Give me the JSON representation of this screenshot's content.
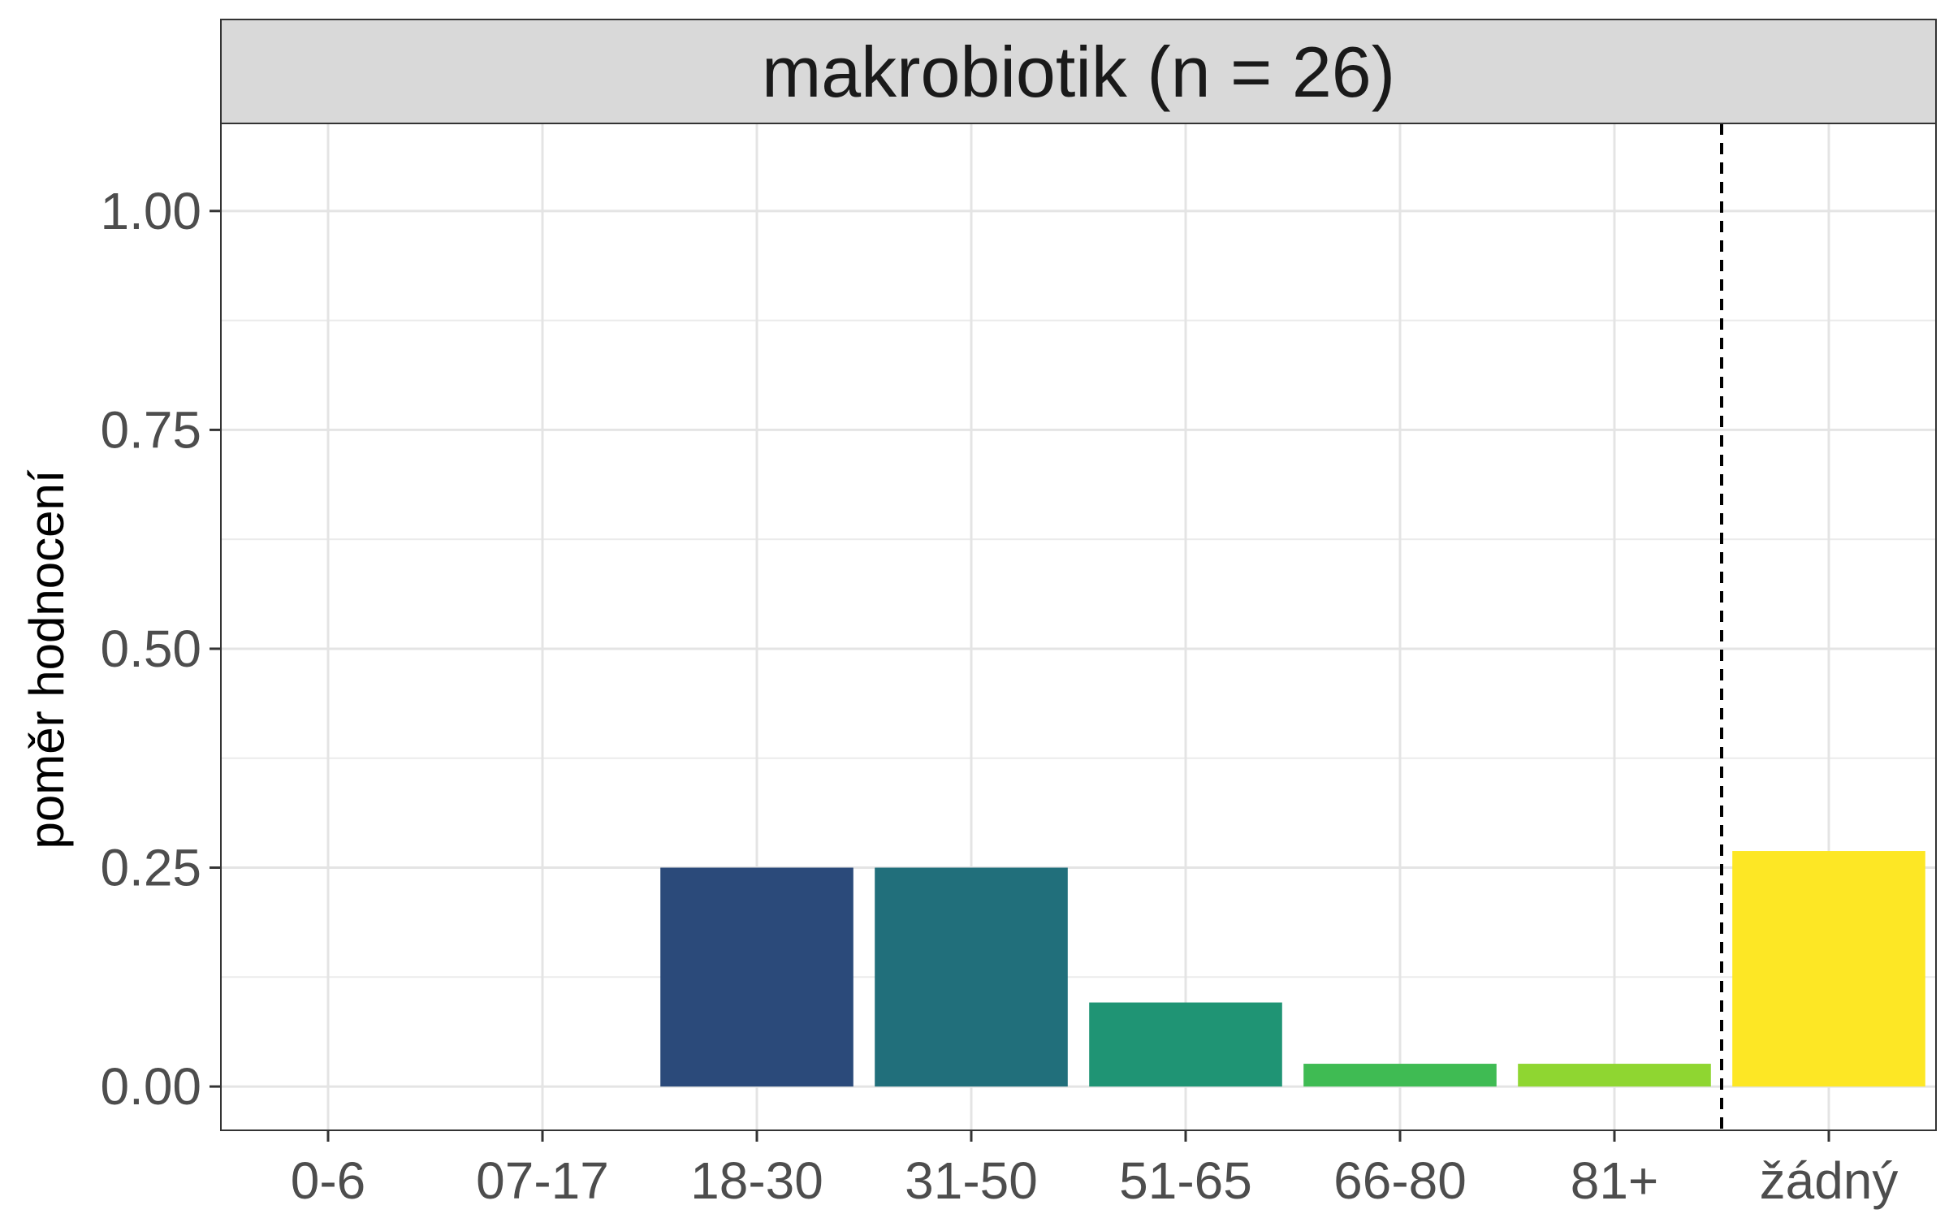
{
  "chart_data": {
    "type": "bar",
    "title": "makrobiotik (n = 26)",
    "xlabel": "",
    "ylabel": "poměr hodnocení",
    "ylim": [
      -0.05,
      1.1
    ],
    "yticks": [
      0.0,
      0.25,
      0.5,
      0.75,
      1.0
    ],
    "ytick_labels": [
      "0.00",
      "0.25",
      "0.50",
      "0.75",
      "1.00"
    ],
    "categories": [
      "0-6",
      "07-17",
      "18-30",
      "31-50",
      "51-65",
      "66-80",
      "81+",
      "žádný"
    ],
    "values": [
      0,
      0,
      0.25,
      0.25,
      0.096,
      0.026,
      0.026,
      0.269
    ],
    "colors": [
      "#440154",
      "#46327e",
      "#2b4a7a",
      "#216f7b",
      "#1f9474",
      "#3fbb53",
      "#8fd631",
      "#fde725"
    ],
    "separator_after_category": "81+",
    "grid": true,
    "legend": "none"
  }
}
